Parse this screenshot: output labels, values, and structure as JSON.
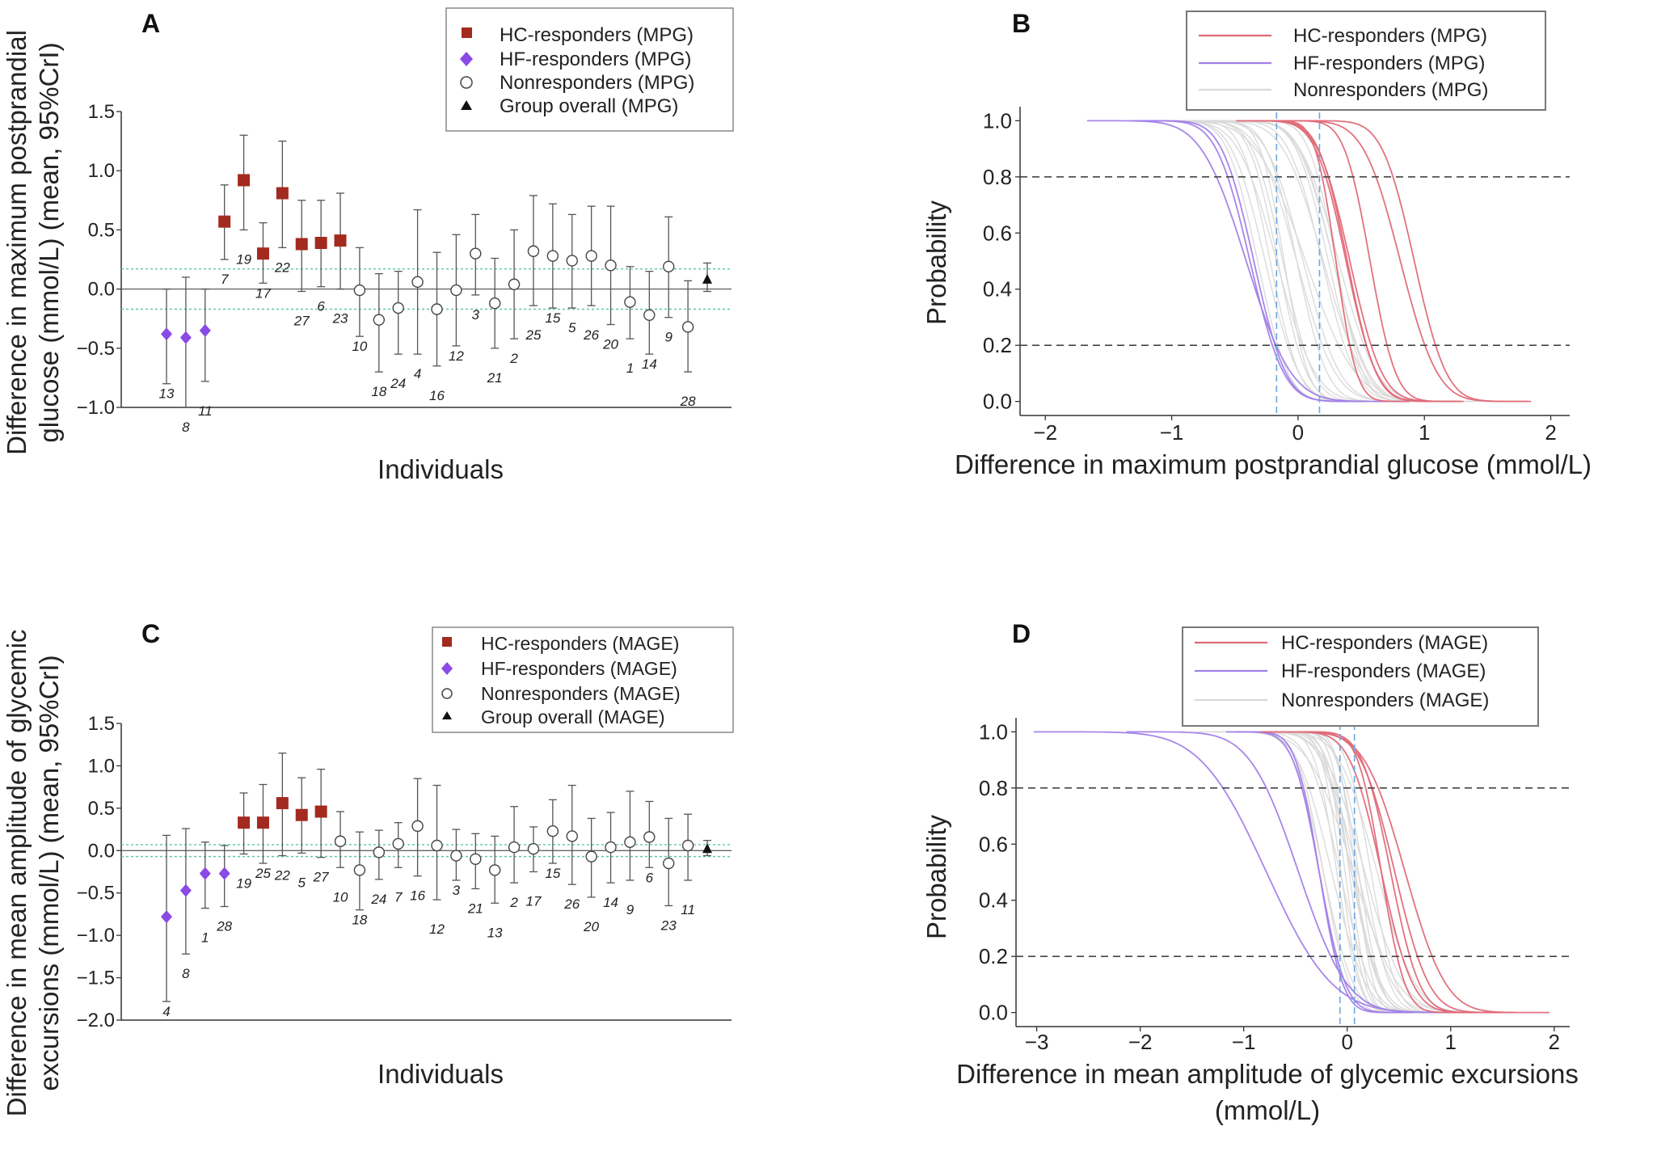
{
  "colors": {
    "hc": "#a32a1f",
    "hf": "#8a4ae6",
    "hc_curve": "#e06a78",
    "hf_curve": "#a27fe8",
    "non_curve": "#d9d9d9",
    "ref_line": "#5cc8a8",
    "thr_line": "#6aa8e0"
  },
  "chart_data": [
    {
      "panel": "A",
      "type": "scatter",
      "ylabel": [
        "Difference in maximum postprandial",
        "glucose (mmol/L) (mean, 95%CrI)"
      ],
      "xlabel": "Individuals",
      "ylim": [
        -1.0,
        1.5
      ],
      "yticks": [
        "1.5",
        "1.0",
        "0.5",
        "0.0",
        "−0.5",
        "−1.0"
      ],
      "ref_lines": [
        0.17,
        -0.17
      ],
      "legend": [
        "HC-responders (MPG)",
        "HF-responders (MPG)",
        "Nonresponders (MPG)",
        "Group overall (MPG)"
      ],
      "points": [
        {
          "label": "13",
          "group": "hf",
          "mean": -0.38,
          "lo": -0.8,
          "hi": 0.0
        },
        {
          "label": "8",
          "group": "hf",
          "mean": -0.41,
          "lo": -1.0,
          "hi": 0.1
        },
        {
          "label": "11",
          "group": "hf",
          "mean": -0.35,
          "lo": -0.78,
          "hi": 0.0
        },
        {
          "label": "7",
          "group": "hc",
          "mean": 0.57,
          "lo": 0.25,
          "hi": 0.88
        },
        {
          "label": "19",
          "group": "hc",
          "mean": 0.92,
          "lo": 0.5,
          "hi": 1.3
        },
        {
          "label": "17",
          "group": "hc",
          "mean": 0.3,
          "lo": 0.05,
          "hi": 0.56
        },
        {
          "label": "22",
          "group": "hc",
          "mean": 0.81,
          "lo": 0.35,
          "hi": 1.25
        },
        {
          "label": "27",
          "group": "hc",
          "mean": 0.38,
          "lo": -0.02,
          "hi": 0.75
        },
        {
          "label": "6",
          "group": "hc",
          "mean": 0.39,
          "lo": 0.02,
          "hi": 0.75
        },
        {
          "label": "23",
          "group": "hc",
          "mean": 0.41,
          "lo": 0.0,
          "hi": 0.81
        },
        {
          "label": "10",
          "group": "non",
          "mean": -0.01,
          "lo": -0.4,
          "hi": 0.35
        },
        {
          "label": "18",
          "group": "non",
          "mean": -0.26,
          "lo": -0.7,
          "hi": 0.13
        },
        {
          "label": "24",
          "group": "non",
          "mean": -0.16,
          "lo": -0.55,
          "hi": 0.15
        },
        {
          "label": "4",
          "group": "non",
          "mean": 0.06,
          "lo": -0.55,
          "hi": 0.67
        },
        {
          "label": "16",
          "group": "non",
          "mean": -0.17,
          "lo": -0.65,
          "hi": 0.31
        },
        {
          "label": "12",
          "group": "non",
          "mean": -0.01,
          "lo": -0.48,
          "hi": 0.46
        },
        {
          "label": "3",
          "group": "non",
          "mean": 0.3,
          "lo": -0.05,
          "hi": 0.63
        },
        {
          "label": "21",
          "group": "non",
          "mean": -0.12,
          "lo": -0.5,
          "hi": 0.26
        },
        {
          "label": "2",
          "group": "non",
          "mean": 0.04,
          "lo": -0.42,
          "hi": 0.5
        },
        {
          "label": "25",
          "group": "non",
          "mean": 0.32,
          "lo": -0.14,
          "hi": 0.79
        },
        {
          "label": "15",
          "group": "non",
          "mean": 0.28,
          "lo": -0.16,
          "hi": 0.72
        },
        {
          "label": "5",
          "group": "non",
          "mean": 0.24,
          "lo": -0.16,
          "hi": 0.63
        },
        {
          "label": "26",
          "group": "non",
          "mean": 0.28,
          "lo": -0.14,
          "hi": 0.7
        },
        {
          "label": "20",
          "group": "non",
          "mean": 0.2,
          "lo": -0.3,
          "hi": 0.7
        },
        {
          "label": "1",
          "group": "non",
          "mean": -0.11,
          "lo": -0.42,
          "hi": 0.19
        },
        {
          "label": "14",
          "group": "non",
          "mean": -0.22,
          "lo": -0.55,
          "hi": 0.15
        },
        {
          "label": "9",
          "group": "non",
          "mean": 0.19,
          "lo": -0.24,
          "hi": 0.61
        },
        {
          "label": "28",
          "group": "non",
          "mean": -0.32,
          "lo": -0.7,
          "hi": 0.07
        },
        {
          "label": "",
          "group": "overall",
          "mean": 0.08,
          "lo": -0.02,
          "hi": 0.22
        }
      ]
    },
    {
      "panel": "C",
      "type": "scatter",
      "ylabel": [
        "Difference in mean amplitude of glycemic",
        "excursions (mmol/L) (mean, 95%CrI)"
      ],
      "xlabel": "Individuals",
      "ylim": [
        -2.0,
        1.5
      ],
      "yticks": [
        "1.5",
        "1.0",
        "0.5",
        "0.0",
        "−0.5",
        "−1.0",
        "−1.5",
        "−2.0"
      ],
      "ref_lines": [
        0.07,
        -0.07
      ],
      "legend": [
        "HC-responders (MAGE)",
        "HF-responders (MAGE)",
        "Nonresponders (MAGE)",
        "Group overall (MAGE)"
      ],
      "points": [
        {
          "label": "4",
          "group": "hf",
          "mean": -0.78,
          "lo": -1.78,
          "hi": 0.18
        },
        {
          "label": "8",
          "group": "hf",
          "mean": -0.47,
          "lo": -1.22,
          "hi": 0.26
        },
        {
          "label": "1",
          "group": "hf",
          "mean": -0.27,
          "lo": -0.68,
          "hi": 0.1
        },
        {
          "label": "28",
          "group": "hf",
          "mean": -0.27,
          "lo": -0.66,
          "hi": 0.06
        },
        {
          "label": "19",
          "group": "hc",
          "mean": 0.33,
          "lo": -0.04,
          "hi": 0.68
        },
        {
          "label": "25",
          "group": "hc",
          "mean": 0.33,
          "lo": -0.15,
          "hi": 0.78
        },
        {
          "label": "22",
          "group": "hc",
          "mean": 0.56,
          "lo": -0.06,
          "hi": 1.15
        },
        {
          "label": "5",
          "group": "hc",
          "mean": 0.42,
          "lo": -0.03,
          "hi": 0.86
        },
        {
          "label": "27",
          "group": "hc",
          "mean": 0.46,
          "lo": -0.08,
          "hi": 0.96
        },
        {
          "label": "10",
          "group": "non",
          "mean": 0.11,
          "lo": -0.2,
          "hi": 0.46
        },
        {
          "label": "18",
          "group": "non",
          "mean": -0.23,
          "lo": -0.7,
          "hi": 0.22
        },
        {
          "label": "24",
          "group": "non",
          "mean": -0.02,
          "lo": -0.34,
          "hi": 0.24
        },
        {
          "label": "7",
          "group": "non",
          "mean": 0.08,
          "lo": -0.2,
          "hi": 0.33
        },
        {
          "label": "16",
          "group": "non",
          "mean": 0.29,
          "lo": -0.3,
          "hi": 0.85
        },
        {
          "label": "12",
          "group": "non",
          "mean": 0.06,
          "lo": -0.58,
          "hi": 0.77
        },
        {
          "label": "3",
          "group": "non",
          "mean": -0.06,
          "lo": -0.35,
          "hi": 0.25
        },
        {
          "label": "21",
          "group": "non",
          "mean": -0.1,
          "lo": -0.45,
          "hi": 0.2
        },
        {
          "label": "13",
          "group": "non",
          "mean": -0.23,
          "lo": -0.62,
          "hi": 0.17
        },
        {
          "label": "2",
          "group": "non",
          "mean": 0.04,
          "lo": -0.38,
          "hi": 0.52
        },
        {
          "label": "17",
          "group": "non",
          "mean": 0.02,
          "lo": -0.25,
          "hi": 0.28
        },
        {
          "label": "15",
          "group": "non",
          "mean": 0.23,
          "lo": -0.15,
          "hi": 0.6
        },
        {
          "label": "26",
          "group": "non",
          "mean": 0.17,
          "lo": -0.4,
          "hi": 0.77
        },
        {
          "label": "20",
          "group": "non",
          "mean": -0.07,
          "lo": -0.55,
          "hi": 0.38
        },
        {
          "label": "14",
          "group": "non",
          "mean": 0.04,
          "lo": -0.38,
          "hi": 0.45
        },
        {
          "label": "9",
          "group": "non",
          "mean": 0.1,
          "lo": -0.35,
          "hi": 0.7
        },
        {
          "label": "6",
          "group": "non",
          "mean": 0.16,
          "lo": -0.2,
          "hi": 0.58
        },
        {
          "label": "23",
          "group": "non",
          "mean": -0.15,
          "lo": -0.65,
          "hi": 0.38
        },
        {
          "label": "11",
          "group": "non",
          "mean": 0.06,
          "lo": -0.35,
          "hi": 0.43
        },
        {
          "label": "",
          "group": "overall",
          "mean": 0.02,
          "lo": -0.06,
          "hi": 0.12
        }
      ]
    },
    {
      "panel": "B",
      "type": "line",
      "xlabel": [
        "Difference in maximum postprandial glucose (mmol/L)"
      ],
      "ylabel": "Probability",
      "xlim": [
        -2.2,
        2.15
      ],
      "ylim": [
        -0.05,
        1.05
      ],
      "xticks": [
        -2,
        -1,
        0,
        1,
        2
      ],
      "xtick_labels": [
        "−2",
        "−1",
        "0",
        "1",
        "2"
      ],
      "yticks": [
        0.0,
        0.2,
        0.4,
        0.6,
        0.8,
        1.0
      ],
      "ytick_labels": [
        "0.0",
        "0.2",
        "0.4",
        "0.6",
        "0.8",
        "1.0"
      ],
      "hlines": [
        0.8,
        0.2
      ],
      "vlines": [
        -0.17,
        0.17
      ],
      "legend": [
        "HC-responders (MPG)",
        "HF-responders (MPG)",
        "Nonresponders (MPG)"
      ],
      "series": [
        {
          "group": "hc",
          "mean": 0.57,
          "sd": 0.16
        },
        {
          "group": "hc",
          "mean": 0.92,
          "sd": 0.2
        },
        {
          "group": "hc",
          "mean": 0.3,
          "sd": 0.13
        },
        {
          "group": "hc",
          "mean": 0.81,
          "sd": 0.23
        },
        {
          "group": "hc",
          "mean": 0.38,
          "sd": 0.19
        },
        {
          "group": "hc",
          "mean": 0.39,
          "sd": 0.18
        },
        {
          "group": "hc",
          "mean": 0.41,
          "sd": 0.2
        },
        {
          "group": "hf",
          "mean": -0.38,
          "sd": 0.21
        },
        {
          "group": "hf",
          "mean": -0.41,
          "sd": 0.28
        },
        {
          "group": "hf",
          "mean": -0.35,
          "sd": 0.2
        },
        {
          "group": "non",
          "mean": -0.01,
          "sd": 0.19
        },
        {
          "group": "non",
          "mean": -0.26,
          "sd": 0.21
        },
        {
          "group": "non",
          "mean": -0.16,
          "sd": 0.18
        },
        {
          "group": "non",
          "mean": 0.06,
          "sd": 0.31
        },
        {
          "group": "non",
          "mean": -0.17,
          "sd": 0.24
        },
        {
          "group": "non",
          "mean": -0.01,
          "sd": 0.24
        },
        {
          "group": "non",
          "mean": 0.3,
          "sd": 0.17
        },
        {
          "group": "non",
          "mean": -0.12,
          "sd": 0.19
        },
        {
          "group": "non",
          "mean": 0.04,
          "sd": 0.23
        },
        {
          "group": "non",
          "mean": 0.32,
          "sd": 0.24
        },
        {
          "group": "non",
          "mean": 0.28,
          "sd": 0.22
        },
        {
          "group": "non",
          "mean": 0.24,
          "sd": 0.2
        },
        {
          "group": "non",
          "mean": 0.28,
          "sd": 0.21
        },
        {
          "group": "non",
          "mean": 0.2,
          "sd": 0.25
        },
        {
          "group": "non",
          "mean": -0.11,
          "sd": 0.15
        },
        {
          "group": "non",
          "mean": -0.22,
          "sd": 0.18
        },
        {
          "group": "non",
          "mean": 0.19,
          "sd": 0.21
        },
        {
          "group": "non",
          "mean": -0.32,
          "sd": 0.19
        }
      ]
    },
    {
      "panel": "D",
      "type": "line",
      "xlabel": [
        "Difference in mean amplitude of glycemic excursions",
        "(mmol/L)"
      ],
      "ylabel": "Probability",
      "xlim": [
        -3.2,
        2.15
      ],
      "ylim": [
        -0.05,
        1.05
      ],
      "xticks": [
        -3,
        -2,
        -1,
        0,
        1,
        2
      ],
      "xtick_labels": [
        "−3",
        "−2",
        "−1",
        "0",
        "1",
        "2"
      ],
      "yticks": [
        0.0,
        0.2,
        0.4,
        0.6,
        0.8,
        1.0
      ],
      "ytick_labels": [
        "0.0",
        "0.2",
        "0.4",
        "0.6",
        "0.8",
        "1.0"
      ],
      "hlines": [
        0.8,
        0.2
      ],
      "vlines": [
        -0.07,
        0.07
      ],
      "legend": [
        "HC-responders (MAGE)",
        "HF-responders (MAGE)",
        "Nonresponders (MAGE)"
      ],
      "series": [
        {
          "group": "hc",
          "mean": 0.33,
          "sd": 0.18
        },
        {
          "group": "hc",
          "mean": 0.33,
          "sd": 0.24
        },
        {
          "group": "hc",
          "mean": 0.56,
          "sd": 0.31
        },
        {
          "group": "hc",
          "mean": 0.42,
          "sd": 0.22
        },
        {
          "group": "hc",
          "mean": 0.46,
          "sd": 0.26
        },
        {
          "group": "hf",
          "mean": -0.78,
          "sd": 0.5
        },
        {
          "group": "hf",
          "mean": -0.47,
          "sd": 0.37
        },
        {
          "group": "hf",
          "mean": -0.27,
          "sd": 0.2
        },
        {
          "group": "hf",
          "mean": -0.27,
          "sd": 0.18
        },
        {
          "group": "non",
          "mean": 0.11,
          "sd": 0.17
        },
        {
          "group": "non",
          "mean": -0.23,
          "sd": 0.23
        },
        {
          "group": "non",
          "mean": -0.02,
          "sd": 0.15
        },
        {
          "group": "non",
          "mean": 0.08,
          "sd": 0.14
        },
        {
          "group": "non",
          "mean": 0.29,
          "sd": 0.29
        },
        {
          "group": "non",
          "mean": 0.06,
          "sd": 0.34
        },
        {
          "group": "non",
          "mean": -0.06,
          "sd": 0.15
        },
        {
          "group": "non",
          "mean": -0.1,
          "sd": 0.17
        },
        {
          "group": "non",
          "mean": -0.23,
          "sd": 0.2
        },
        {
          "group": "non",
          "mean": 0.04,
          "sd": 0.23
        },
        {
          "group": "non",
          "mean": 0.02,
          "sd": 0.14
        },
        {
          "group": "non",
          "mean": 0.23,
          "sd": 0.19
        },
        {
          "group": "non",
          "mean": 0.17,
          "sd": 0.3
        },
        {
          "group": "non",
          "mean": -0.07,
          "sd": 0.24
        },
        {
          "group": "non",
          "mean": 0.04,
          "sd": 0.21
        },
        {
          "group": "non",
          "mean": 0.1,
          "sd": 0.27
        },
        {
          "group": "non",
          "mean": 0.16,
          "sd": 0.2
        },
        {
          "group": "non",
          "mean": -0.15,
          "sd": 0.26
        },
        {
          "group": "non",
          "mean": 0.06,
          "sd": 0.2
        }
      ]
    }
  ]
}
